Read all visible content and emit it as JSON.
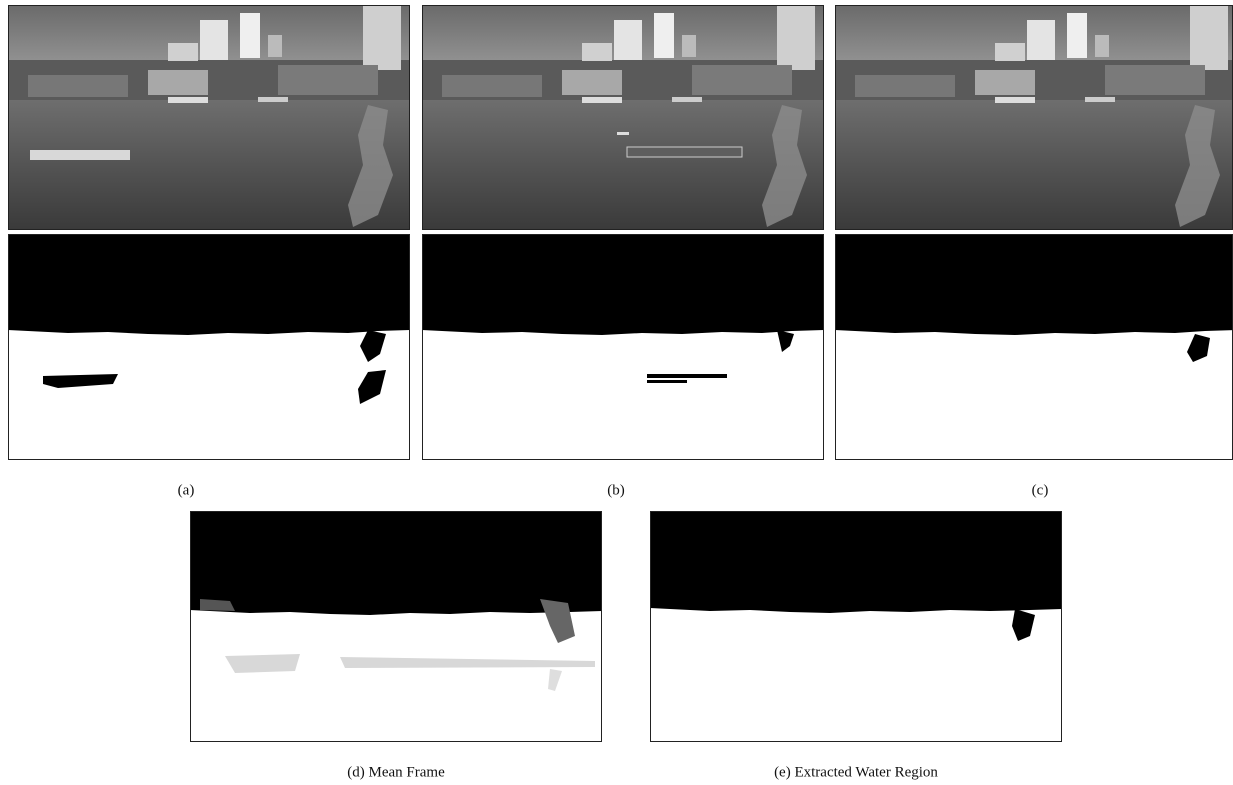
{
  "figure": {
    "captions": {
      "a": "(a)",
      "b": "(b)",
      "c": "(c)",
      "d": "(d) Mean Frame",
      "e": "(e) Extracted Water Region"
    }
  }
}
